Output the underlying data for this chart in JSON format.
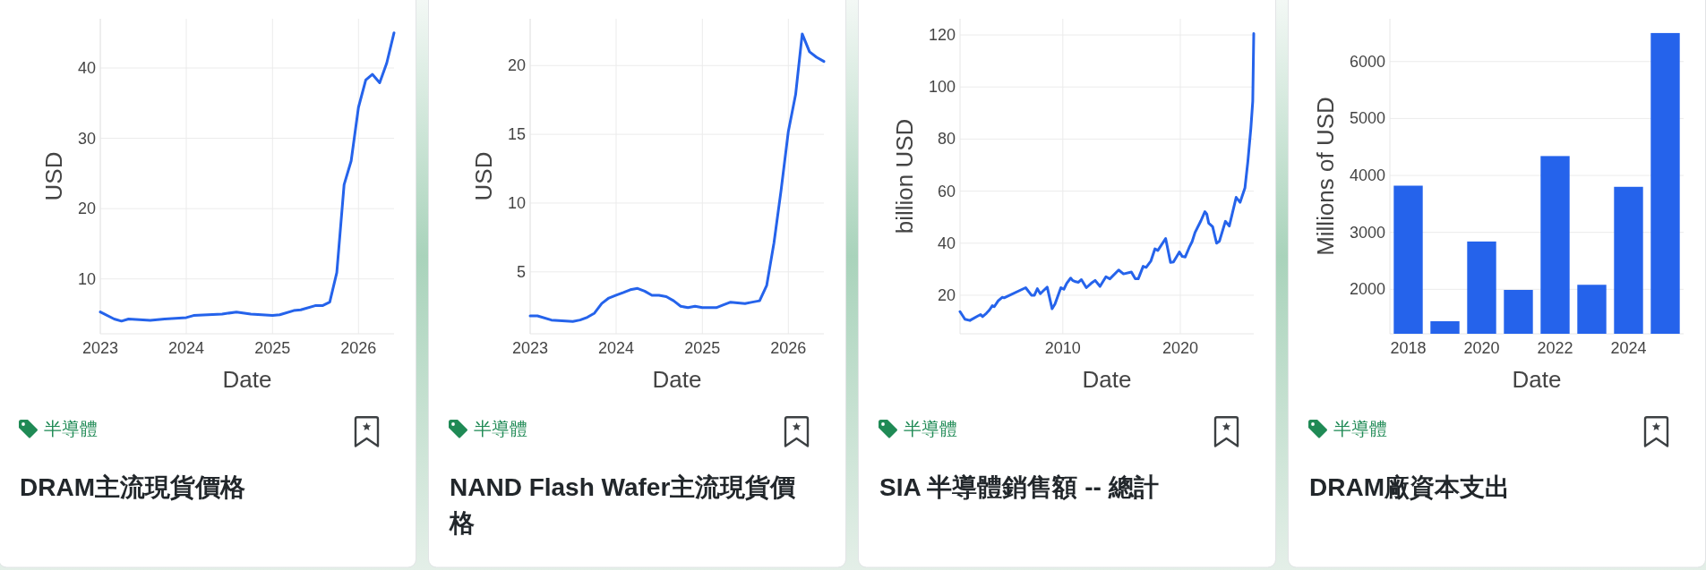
{
  "chart_data": [
    {
      "type": "line",
      "title": "DRAM主流現貨價格",
      "annotations": [
        "半導體"
      ],
      "xlabel": "Date",
      "ylabel": "USD",
      "color": "#2563eb",
      "grid": true,
      "x": [
        "2023-01",
        "2023-03",
        "2023-04",
        "2023-05",
        "2023-08",
        "2023-10",
        "2024-01",
        "2024-02",
        "2024-06",
        "2024-08",
        "2024-10",
        "2025-01",
        "2025-02",
        "2025-04",
        "2025-05",
        "2025-07",
        "2025-08",
        "2025-09",
        "2025-10",
        "2025-11",
        "2025-12",
        "2026-01",
        "2026-02",
        "2026-03",
        "2026-04",
        "2026-05",
        "2026-06"
      ],
      "values": [
        5.3,
        4.3,
        4.0,
        4.3,
        4.1,
        4.3,
        4.5,
        4.8,
        5.0,
        5.3,
        5.0,
        4.8,
        4.9,
        5.5,
        5.6,
        6.2,
        6.2,
        6.7,
        10.9,
        23.4,
        26.8,
        34.4,
        38.3,
        39.1,
        37.9,
        40.7,
        45.0
      ],
      "xlim": [
        "2023-01",
        "2026-06"
      ],
      "xticks": [
        "2023",
        "2024",
        "2025",
        "2026"
      ],
      "ylim": [
        2.2,
        47
      ],
      "yticks": [
        10,
        20,
        30,
        40
      ]
    },
    {
      "type": "line",
      "title": "NAND Flash Wafer主流現貨價格",
      "annotations": [
        "半導體"
      ],
      "xlabel": "Date",
      "ylabel": "USD",
      "color": "#2563eb",
      "grid": true,
      "x": [
        "2023-01",
        "2023-02",
        "2023-04",
        "2023-07",
        "2023-08",
        "2023-09",
        "2023-10",
        "2023-11",
        "2023-12",
        "2024-01",
        "2024-02",
        "2024-03",
        "2024-04",
        "2024-05",
        "2024-06",
        "2024-07",
        "2024-08",
        "2024-09",
        "2024-10",
        "2024-11",
        "2024-12",
        "2025-01",
        "2025-03",
        "2025-04",
        "2025-05",
        "2025-07",
        "2025-08",
        "2025-09",
        "2025-10",
        "2025-11",
        "2025-12",
        "2026-01",
        "2026-02",
        "2026-03",
        "2026-04",
        "2026-05",
        "2026-06"
      ],
      "values": [
        1.8,
        1.8,
        1.5,
        1.4,
        1.5,
        1.7,
        2.0,
        2.7,
        3.1,
        3.3,
        3.5,
        3.7,
        3.8,
        3.6,
        3.3,
        3.3,
        3.2,
        2.9,
        2.5,
        2.4,
        2.5,
        2.4,
        2.4,
        2.6,
        2.8,
        2.7,
        2.8,
        2.9,
        4.0,
        7.1,
        10.9,
        15.2,
        17.9,
        22.3,
        21.0,
        20.6,
        20.3
      ],
      "xlim": [
        "2023-01",
        "2026-06"
      ],
      "xticks": [
        "2023",
        "2024",
        "2025",
        "2026"
      ],
      "ylim": [
        0.5,
        23.4
      ],
      "yticks": [
        5,
        10,
        15,
        20
      ]
    },
    {
      "type": "line",
      "title": "SIA 半導體銷售額 -- 總計",
      "annotations": [
        "半導體"
      ],
      "xlabel": "Date",
      "ylabel": "billion USD",
      "color": "#2563eb",
      "grid": true,
      "x": [
        "2001-04",
        "2001-09",
        "2002-02",
        "2002-10",
        "2003-01",
        "2003-03",
        "2003-07",
        "2003-10",
        "2004-01",
        "2004-03",
        "2004-07",
        "2004-11",
        "2005-01",
        "2006-11",
        "2007-05",
        "2007-08",
        "2007-11",
        "2008-02",
        "2008-05",
        "2008-09",
        "2009-02",
        "2009-05",
        "2009-11",
        "2010-02",
        "2010-05",
        "2010-09",
        "2010-11",
        "2011-02",
        "2011-05",
        "2011-08",
        "2012-01",
        "2012-06",
        "2012-10",
        "2013-03",
        "2013-09",
        "2014-01",
        "2014-10",
        "2015-03",
        "2015-11",
        "2016-03",
        "2016-06",
        "2016-11",
        "2017-02",
        "2017-07",
        "2017-11",
        "2018-02",
        "2018-10",
        "2019-03",
        "2019-06",
        "2019-12",
        "2020-03",
        "2020-06",
        "2020-10",
        "2021-01",
        "2021-04",
        "2021-10",
        "2022-02",
        "2022-04",
        "2022-06",
        "2022-10",
        "2023-02",
        "2023-05",
        "2023-11",
        "2024-03",
        "2024-10",
        "2025-02",
        "2025-07",
        "2025-10",
        "2026-01",
        "2026-03",
        "2026-04"
      ],
      "values": [
        13.7,
        10.8,
        10.3,
        12.0,
        12.6,
        11.8,
        13.1,
        14.3,
        16.0,
        15.6,
        17.9,
        19.2,
        19.0,
        22.9,
        20.0,
        20.0,
        22.5,
        20.6,
        21.7,
        23.1,
        14.8,
        16.6,
        22.9,
        22.3,
        24.6,
        26.6,
        25.7,
        25.2,
        25.0,
        26.0,
        22.9,
        24.6,
        25.7,
        23.4,
        27.1,
        26.3,
        29.7,
        28.2,
        28.9,
        26.3,
        26.3,
        31.1,
        30.7,
        33.2,
        37.8,
        37.2,
        41.8,
        32.6,
        32.8,
        36.6,
        34.9,
        34.7,
        38.3,
        40.6,
        44.1,
        48.6,
        52.1,
        51.2,
        47.7,
        46.3,
        40.0,
        40.8,
        48.4,
        46.6,
        57.6,
        55.7,
        61.2,
        71.5,
        84.1,
        94.5,
        120.5
      ],
      "xlim": [
        "2001-04",
        "2026-04"
      ],
      "xticks": [
        "2010",
        "2020"
      ],
      "ylim": [
        5.2,
        126.2
      ],
      "yticks": [
        20,
        40,
        60,
        80,
        100,
        120
      ]
    },
    {
      "type": "bar",
      "title": "DRAM廠資本支出",
      "annotations": [
        "半導體"
      ],
      "xlabel": "Date",
      "ylabel": "Millions of USD",
      "color": "#2563eb",
      "grid": "y",
      "x": [
        2018,
        2019,
        2020,
        2021,
        2022,
        2023,
        2024,
        2025
      ],
      "values": [
        3820,
        1440,
        2840,
        1990,
        4340,
        2080,
        3800,
        6500
      ],
      "xlim": [
        2017.5,
        2025.5
      ],
      "xticks": [
        2018,
        2020,
        2022,
        2024
      ],
      "ylim": [
        1220,
        6750
      ],
      "yticks": [
        2000,
        3000,
        4000,
        5000,
        6000
      ]
    }
  ]
}
